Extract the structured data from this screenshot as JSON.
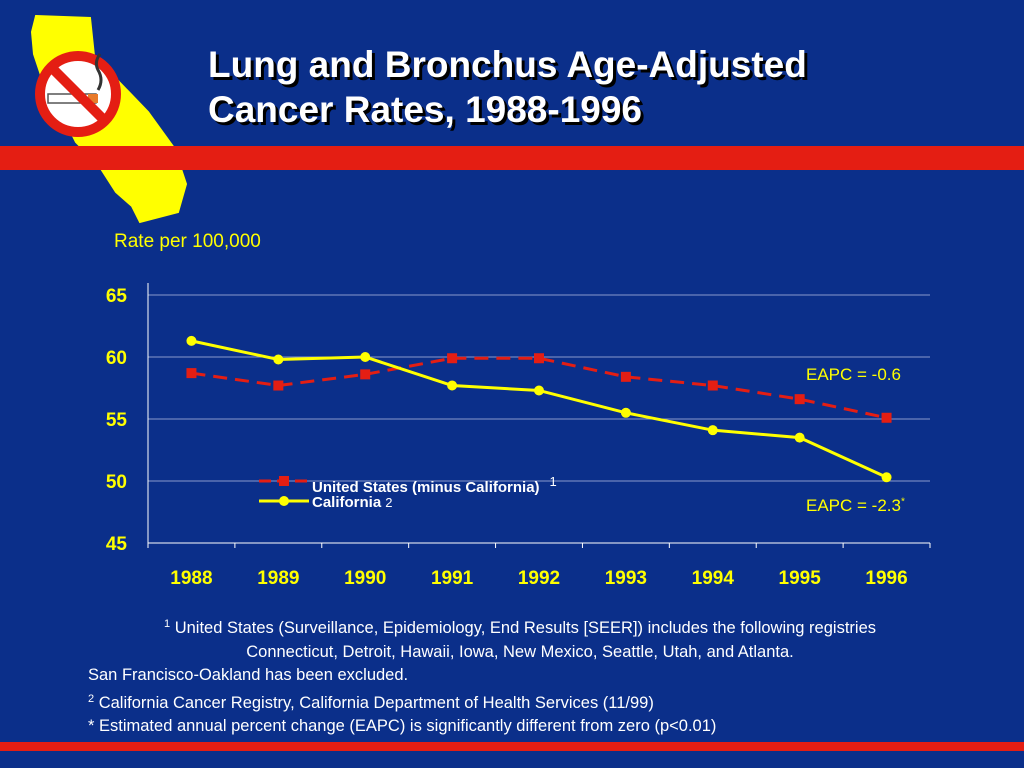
{
  "title": {
    "line1": "Lung and Bronchus Age-Adjusted",
    "line2": "Cancer Rates, 1988-1996"
  },
  "logo": {
    "icon": "california-no-smoking-icon"
  },
  "colors": {
    "background": "#0b2f8a",
    "band": "#e41e13",
    "us_series": "#e41e13",
    "ca_series": "#ffff00",
    "axis_text": "#ffff00",
    "gridline": "#8899cc"
  },
  "chart_data": {
    "type": "line",
    "ylabel": "Rate per 100,000",
    "ylim": [
      45,
      65
    ],
    "yticks": [
      65,
      60,
      55,
      50,
      45
    ],
    "categories": [
      "1988",
      "1989",
      "1990",
      "1991",
      "1992",
      "1993",
      "1994",
      "1995",
      "1996"
    ],
    "grid": true,
    "legend_position": "center-left",
    "series": [
      {
        "name": "United States (minus California)",
        "name_sup": "1",
        "style": "dashed-square",
        "values": [
          58.7,
          57.7,
          58.6,
          59.9,
          59.9,
          58.4,
          57.7,
          56.6,
          55.1
        ]
      },
      {
        "name": "California",
        "name_sup": "2",
        "style": "solid-circle",
        "values": [
          61.3,
          59.8,
          60.0,
          57.7,
          57.3,
          55.5,
          54.1,
          53.5,
          50.3
        ]
      }
    ],
    "annotations": {
      "us_eapc": "EAPC = -0.6",
      "ca_eapc": "EAPC = -2.3",
      "ca_eapc_mark": "*"
    }
  },
  "footnotes": {
    "fn1_mark": "1",
    "fn1_line1": "United States (Surveillance, Epidemiology, End Results [SEER]) includes the following registries",
    "fn1_line2": "Connecticut, Detroit, Hawaii, Iowa, New Mexico, Seattle, Utah, and Atlanta.",
    "fn1_line3": "San Francisco-Oakland has been excluded.",
    "fn2_mark": "2",
    "fn2_text": "California Cancer Registry, California Department of Health Services (11/99)",
    "fn3_text": "* Estimated annual percent change (EAPC) is significantly different from zero (p<0.01)"
  }
}
